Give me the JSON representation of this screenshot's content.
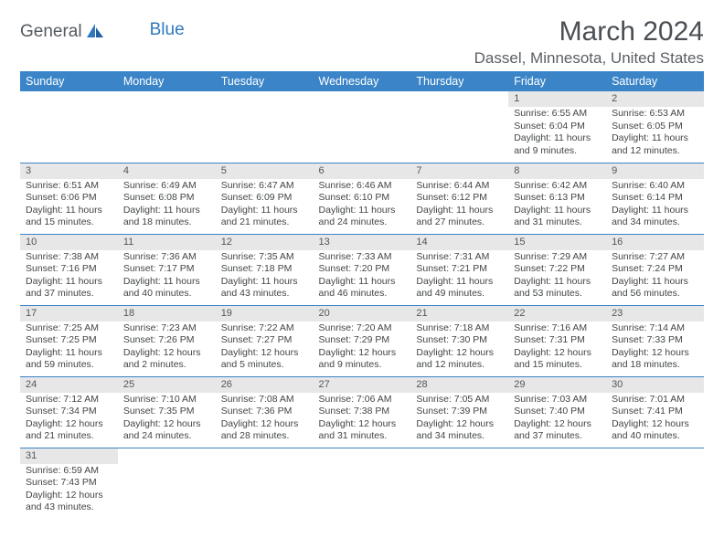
{
  "logo": {
    "word1": "General",
    "word2": "Blue"
  },
  "title": "March 2024",
  "location": "Dassel, Minnesota, United States",
  "colors": {
    "header_bg": "#3a84c7",
    "header_text": "#ffffff",
    "daynum_bg": "#e7e7e7",
    "cell_border": "#3a84c7",
    "body_text": "#424547",
    "logo_dark": "#555a5f",
    "logo_blue": "#2f78bd"
  },
  "weekdays": [
    "Sunday",
    "Monday",
    "Tuesday",
    "Wednesday",
    "Thursday",
    "Friday",
    "Saturday"
  ],
  "weeks": [
    [
      {
        "empty": true
      },
      {
        "empty": true
      },
      {
        "empty": true
      },
      {
        "empty": true
      },
      {
        "empty": true
      },
      {
        "day": "1",
        "sunrise": "6:55 AM",
        "sunset": "6:04 PM",
        "daylight": "11 hours and 9 minutes."
      },
      {
        "day": "2",
        "sunrise": "6:53 AM",
        "sunset": "6:05 PM",
        "daylight": "11 hours and 12 minutes."
      }
    ],
    [
      {
        "day": "3",
        "sunrise": "6:51 AM",
        "sunset": "6:06 PM",
        "daylight": "11 hours and 15 minutes."
      },
      {
        "day": "4",
        "sunrise": "6:49 AM",
        "sunset": "6:08 PM",
        "daylight": "11 hours and 18 minutes."
      },
      {
        "day": "5",
        "sunrise": "6:47 AM",
        "sunset": "6:09 PM",
        "daylight": "11 hours and 21 minutes."
      },
      {
        "day": "6",
        "sunrise": "6:46 AM",
        "sunset": "6:10 PM",
        "daylight": "11 hours and 24 minutes."
      },
      {
        "day": "7",
        "sunrise": "6:44 AM",
        "sunset": "6:12 PM",
        "daylight": "11 hours and 27 minutes."
      },
      {
        "day": "8",
        "sunrise": "6:42 AM",
        "sunset": "6:13 PM",
        "daylight": "11 hours and 31 minutes."
      },
      {
        "day": "9",
        "sunrise": "6:40 AM",
        "sunset": "6:14 PM",
        "daylight": "11 hours and 34 minutes."
      }
    ],
    [
      {
        "day": "10",
        "sunrise": "7:38 AM",
        "sunset": "7:16 PM",
        "daylight": "11 hours and 37 minutes."
      },
      {
        "day": "11",
        "sunrise": "7:36 AM",
        "sunset": "7:17 PM",
        "daylight": "11 hours and 40 minutes."
      },
      {
        "day": "12",
        "sunrise": "7:35 AM",
        "sunset": "7:18 PM",
        "daylight": "11 hours and 43 minutes."
      },
      {
        "day": "13",
        "sunrise": "7:33 AM",
        "sunset": "7:20 PM",
        "daylight": "11 hours and 46 minutes."
      },
      {
        "day": "14",
        "sunrise": "7:31 AM",
        "sunset": "7:21 PM",
        "daylight": "11 hours and 49 minutes."
      },
      {
        "day": "15",
        "sunrise": "7:29 AM",
        "sunset": "7:22 PM",
        "daylight": "11 hours and 53 minutes."
      },
      {
        "day": "16",
        "sunrise": "7:27 AM",
        "sunset": "7:24 PM",
        "daylight": "11 hours and 56 minutes."
      }
    ],
    [
      {
        "day": "17",
        "sunrise": "7:25 AM",
        "sunset": "7:25 PM",
        "daylight": "11 hours and 59 minutes."
      },
      {
        "day": "18",
        "sunrise": "7:23 AM",
        "sunset": "7:26 PM",
        "daylight": "12 hours and 2 minutes."
      },
      {
        "day": "19",
        "sunrise": "7:22 AM",
        "sunset": "7:27 PM",
        "daylight": "12 hours and 5 minutes."
      },
      {
        "day": "20",
        "sunrise": "7:20 AM",
        "sunset": "7:29 PM",
        "daylight": "12 hours and 9 minutes."
      },
      {
        "day": "21",
        "sunrise": "7:18 AM",
        "sunset": "7:30 PM",
        "daylight": "12 hours and 12 minutes."
      },
      {
        "day": "22",
        "sunrise": "7:16 AM",
        "sunset": "7:31 PM",
        "daylight": "12 hours and 15 minutes."
      },
      {
        "day": "23",
        "sunrise": "7:14 AM",
        "sunset": "7:33 PM",
        "daylight": "12 hours and 18 minutes."
      }
    ],
    [
      {
        "day": "24",
        "sunrise": "7:12 AM",
        "sunset": "7:34 PM",
        "daylight": "12 hours and 21 minutes."
      },
      {
        "day": "25",
        "sunrise": "7:10 AM",
        "sunset": "7:35 PM",
        "daylight": "12 hours and 24 minutes."
      },
      {
        "day": "26",
        "sunrise": "7:08 AM",
        "sunset": "7:36 PM",
        "daylight": "12 hours and 28 minutes."
      },
      {
        "day": "27",
        "sunrise": "7:06 AM",
        "sunset": "7:38 PM",
        "daylight": "12 hours and 31 minutes."
      },
      {
        "day": "28",
        "sunrise": "7:05 AM",
        "sunset": "7:39 PM",
        "daylight": "12 hours and 34 minutes."
      },
      {
        "day": "29",
        "sunrise": "7:03 AM",
        "sunset": "7:40 PM",
        "daylight": "12 hours and 37 minutes."
      },
      {
        "day": "30",
        "sunrise": "7:01 AM",
        "sunset": "7:41 PM",
        "daylight": "12 hours and 40 minutes."
      }
    ],
    [
      {
        "day": "31",
        "sunrise": "6:59 AM",
        "sunset": "7:43 PM",
        "daylight": "12 hours and 43 minutes."
      },
      {
        "empty": true
      },
      {
        "empty": true
      },
      {
        "empty": true
      },
      {
        "empty": true
      },
      {
        "empty": true
      },
      {
        "empty": true
      }
    ]
  ],
  "labels": {
    "sunrise": "Sunrise: ",
    "sunset": "Sunset: ",
    "daylight": "Daylight: "
  }
}
